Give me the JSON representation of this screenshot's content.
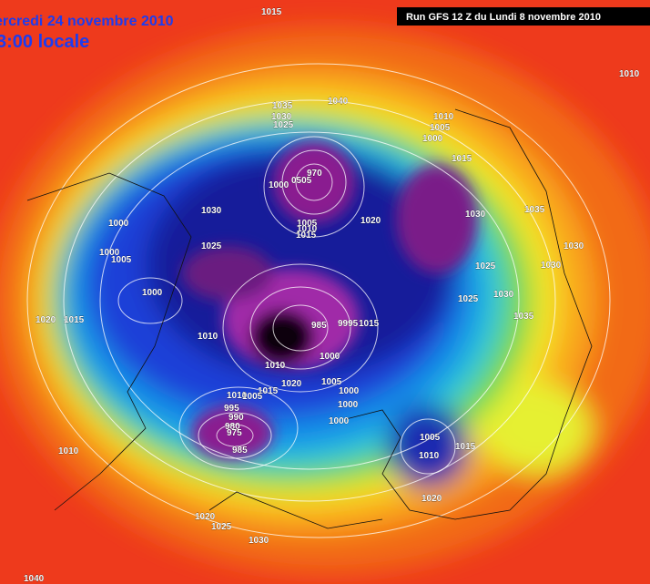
{
  "header": {
    "date": "ercredi 24 novembre 2010",
    "time": "3:00 locale",
    "run": "Run GFS 12 Z du Lundi 8 novembre 2010"
  },
  "isobar_labels": [
    "1015",
    "1010",
    "1035",
    "1040",
    "1030",
    "1025",
    "1010",
    "1005",
    "1000",
    "1015",
    "970",
    "0505",
    "1000",
    "1030",
    "1000",
    "1005",
    "1010",
    "1015",
    "1020",
    "1030",
    "1035",
    "1000",
    "1005",
    "1025",
    "1030",
    "1025",
    "1030",
    "1000",
    "1025",
    "1030",
    "1035",
    "1020",
    "1015",
    "985",
    "9995",
    "1015",
    "1010",
    "1000",
    "1010",
    "1020",
    "1015",
    "1005",
    "1010",
    "1005",
    "1000",
    "995",
    "1000",
    "990",
    "980",
    "1000",
    "975",
    "985",
    "1005",
    "1015",
    "1010",
    "1010",
    "1020",
    "1020",
    "1025",
    "1030",
    "1040"
  ]
}
